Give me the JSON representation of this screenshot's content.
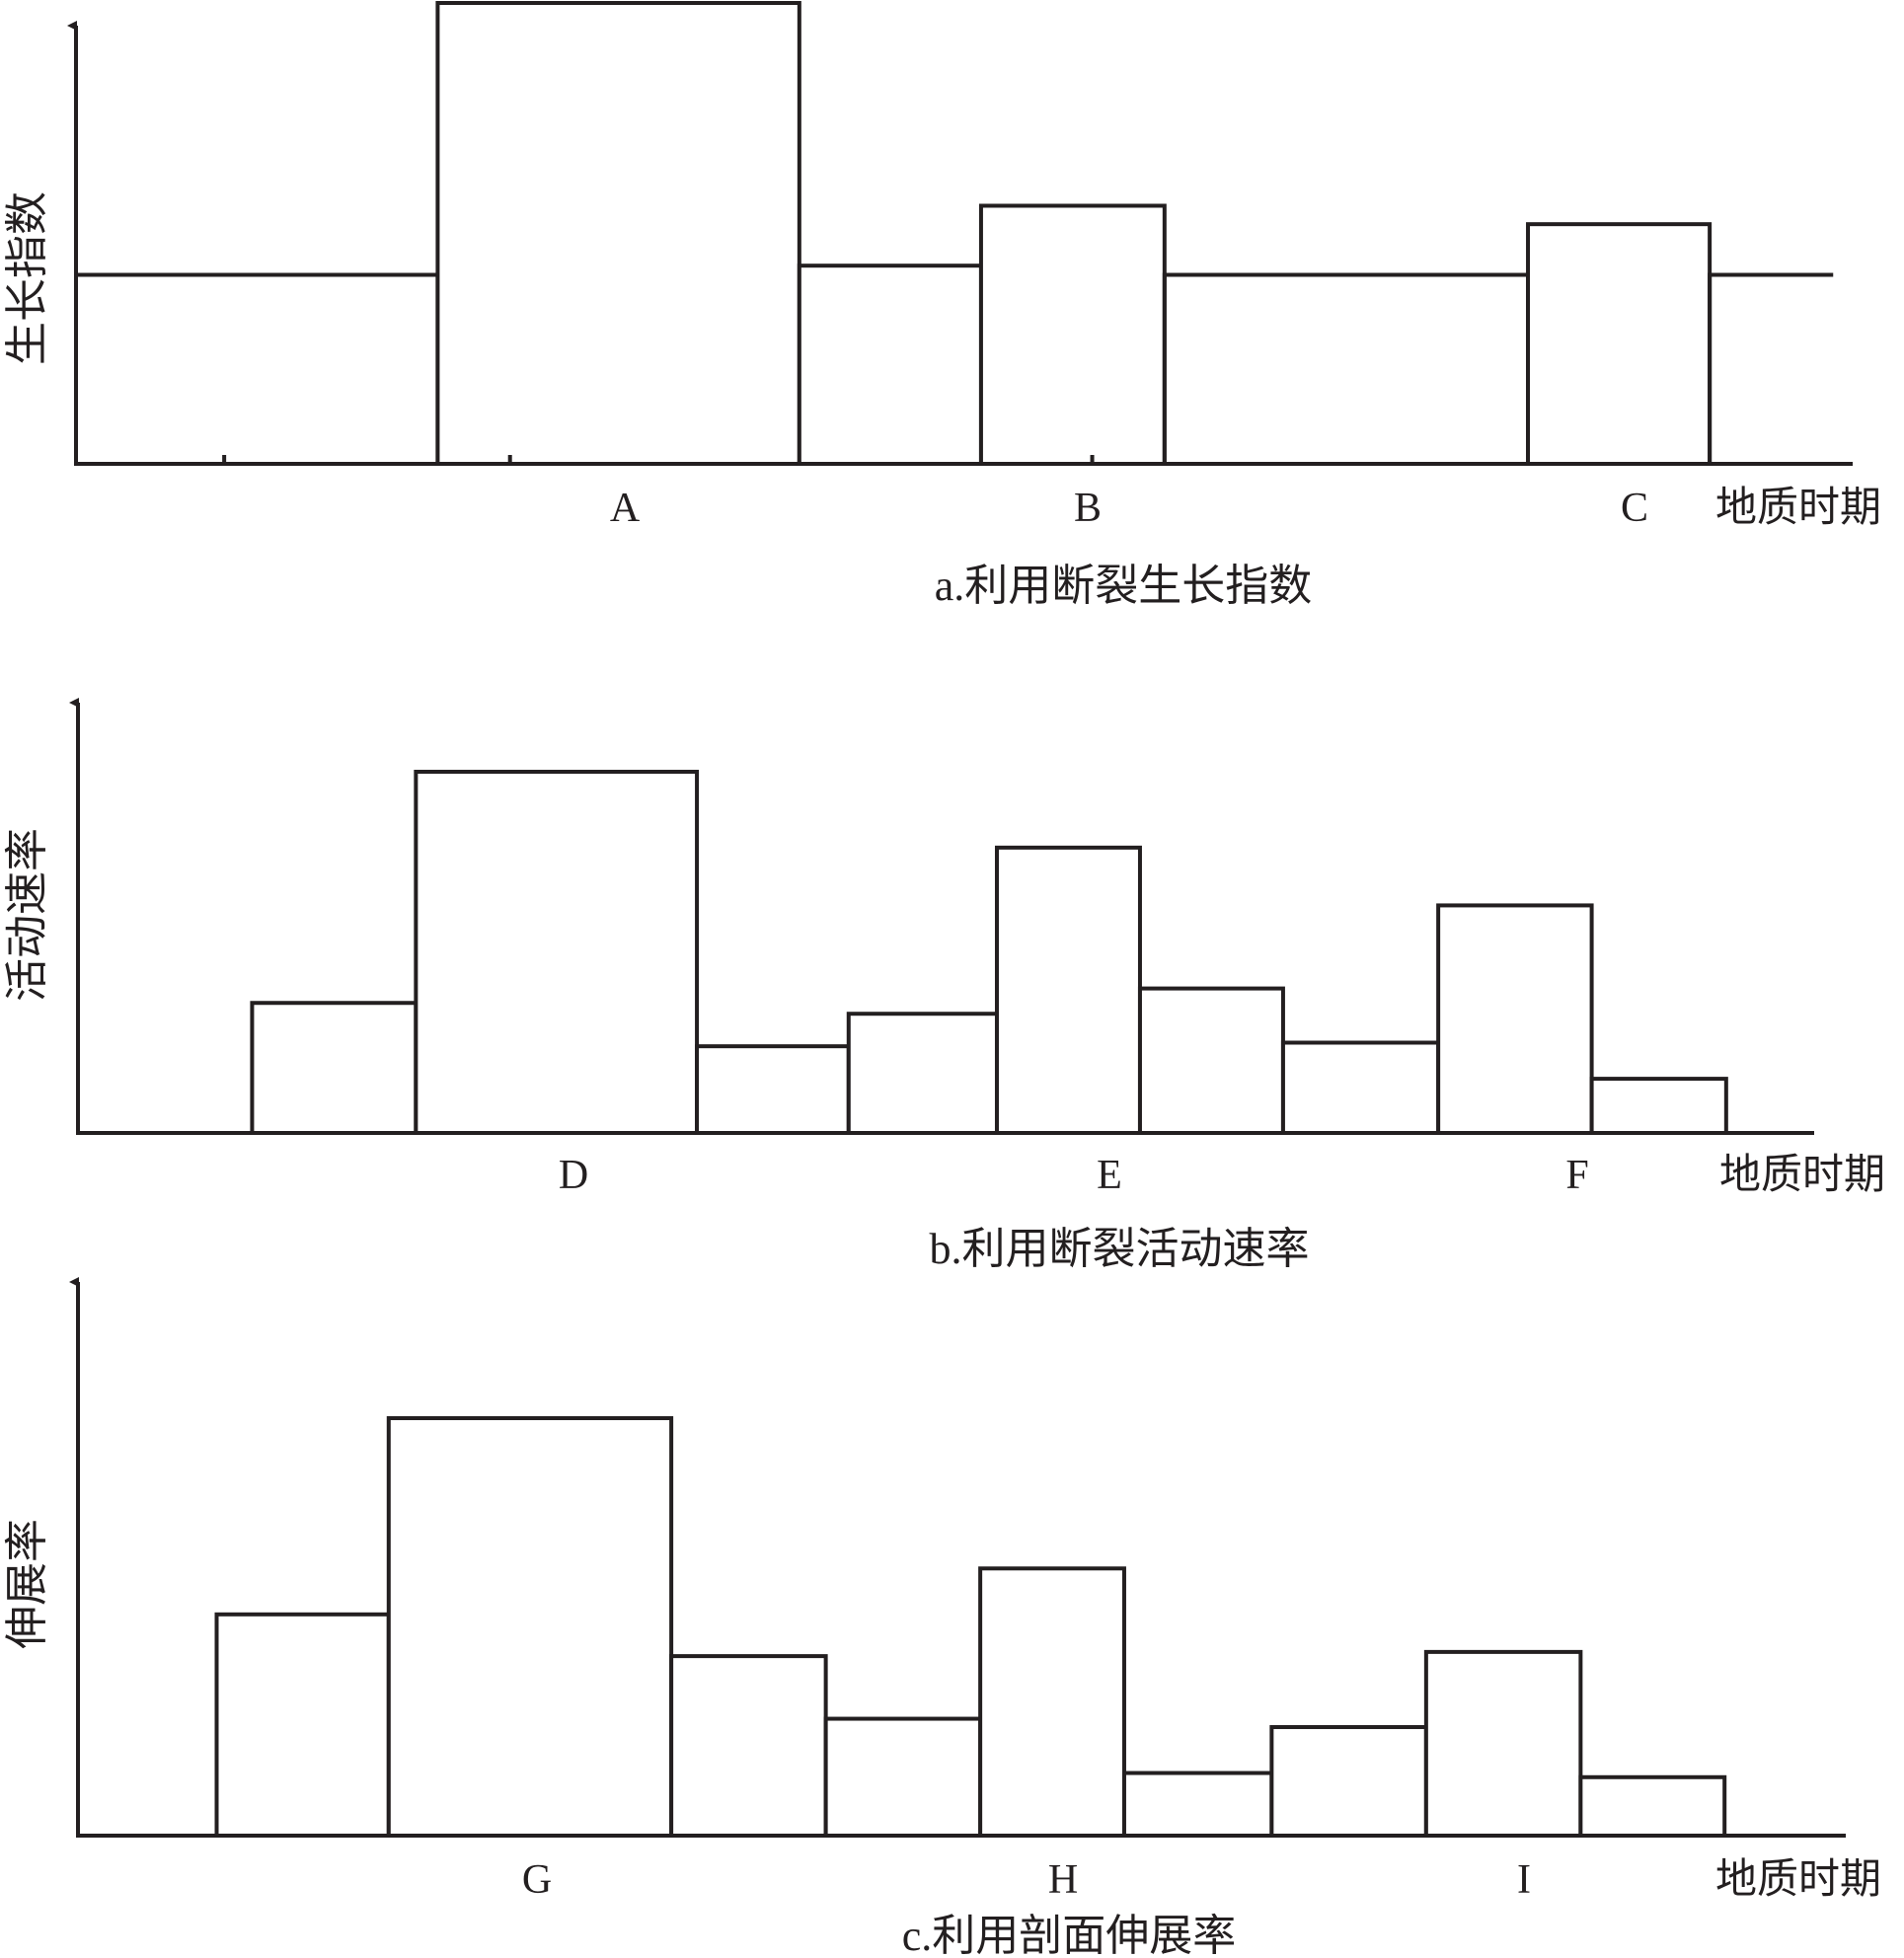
{
  "charts": [
    {
      "caption": "a.利用断裂生长指数",
      "ylabel": "生长指数",
      "xlabel": "地质时期",
      "tick_labels": [
        "A",
        "B",
        "C"
      ]
    },
    {
      "caption": "b.利用断裂活动速率",
      "ylabel": "活动速率",
      "xlabel": "地质时期",
      "tick_labels": [
        "D",
        "E",
        "F"
      ]
    },
    {
      "caption": "c.利用剖面伸展率",
      "ylabel": "伸展率",
      "xlabel": "地质时期",
      "tick_labels": [
        "G",
        "H",
        "I"
      ]
    }
  ],
  "chart_data": [
    {
      "type": "bar",
      "title": "a.利用断裂生长指数",
      "xlabel": "地质时期",
      "ylabel": "生长指数",
      "ylim": [
        0,
        100
      ],
      "labeled_periods": [
        "A",
        "B",
        "C"
      ],
      "bars": [
        {
          "x0": 0,
          "x1": 20.5,
          "value": 41
        },
        {
          "x0": 20.5,
          "x1": 41,
          "value": 100
        },
        {
          "x0": 41,
          "x1": 51.3,
          "value": 43
        },
        {
          "x0": 51.3,
          "x1": 61.7,
          "value": 56
        },
        {
          "x0": 61.7,
          "x1": 82.3,
          "value": 41
        },
        {
          "x0": 82.3,
          "x1": 92.6,
          "value": 52
        },
        {
          "x0": 92.6,
          "x1": 99.6,
          "value": 41
        }
      ],
      "tick_positions": [
        31,
        56.2,
        87.2
      ]
    },
    {
      "type": "bar",
      "title": "b.利用断裂活动速率",
      "xlabel": "地质时期",
      "ylabel": "活动速率",
      "ylim": [
        0,
        100
      ],
      "labeled_periods": [
        "D",
        "E",
        "F"
      ],
      "bars": [
        {
          "x0": 10.1,
          "x1": 19.6,
          "value": 36
        },
        {
          "x0": 19.6,
          "x1": 35.9,
          "value": 100
        },
        {
          "x0": 35.9,
          "x1": 44.7,
          "value": 24
        },
        {
          "x0": 44.7,
          "x1": 53.3,
          "value": 33
        },
        {
          "x0": 53.3,
          "x1": 61.6,
          "value": 79
        },
        {
          "x0": 61.6,
          "x1": 69.9,
          "value": 40
        },
        {
          "x0": 69.9,
          "x1": 78.9,
          "value": 25
        },
        {
          "x0": 78.9,
          "x1": 87.8,
          "value": 63
        },
        {
          "x0": 87.8,
          "x1": 95.6,
          "value": 15
        }
      ],
      "tick_positions": [
        27.9,
        57.4,
        83.5
      ]
    },
    {
      "type": "bar",
      "title": "c.利用剖面伸展率",
      "xlabel": "地质时期",
      "ylabel": "伸展率",
      "ylim": [
        0,
        100
      ],
      "labeled_periods": [
        "G",
        "H",
        "I"
      ],
      "bars": [
        {
          "x0": 7.9,
          "x1": 17.7,
          "value": 53
        },
        {
          "x0": 17.7,
          "x1": 33.8,
          "value": 100
        },
        {
          "x0": 33.8,
          "x1": 42.6,
          "value": 43
        },
        {
          "x0": 42.6,
          "x1": 51.4,
          "value": 28
        },
        {
          "x0": 51.4,
          "x1": 59.6,
          "value": 64
        },
        {
          "x0": 59.6,
          "x1": 68.0,
          "value": 15
        },
        {
          "x0": 68.0,
          "x1": 76.8,
          "value": 26
        },
        {
          "x0": 76.8,
          "x1": 85.6,
          "value": 44
        },
        {
          "x0": 85.6,
          "x1": 93.8,
          "value": 14
        }
      ],
      "tick_positions": [
        26.3,
        55.8,
        81.4
      ]
    }
  ]
}
